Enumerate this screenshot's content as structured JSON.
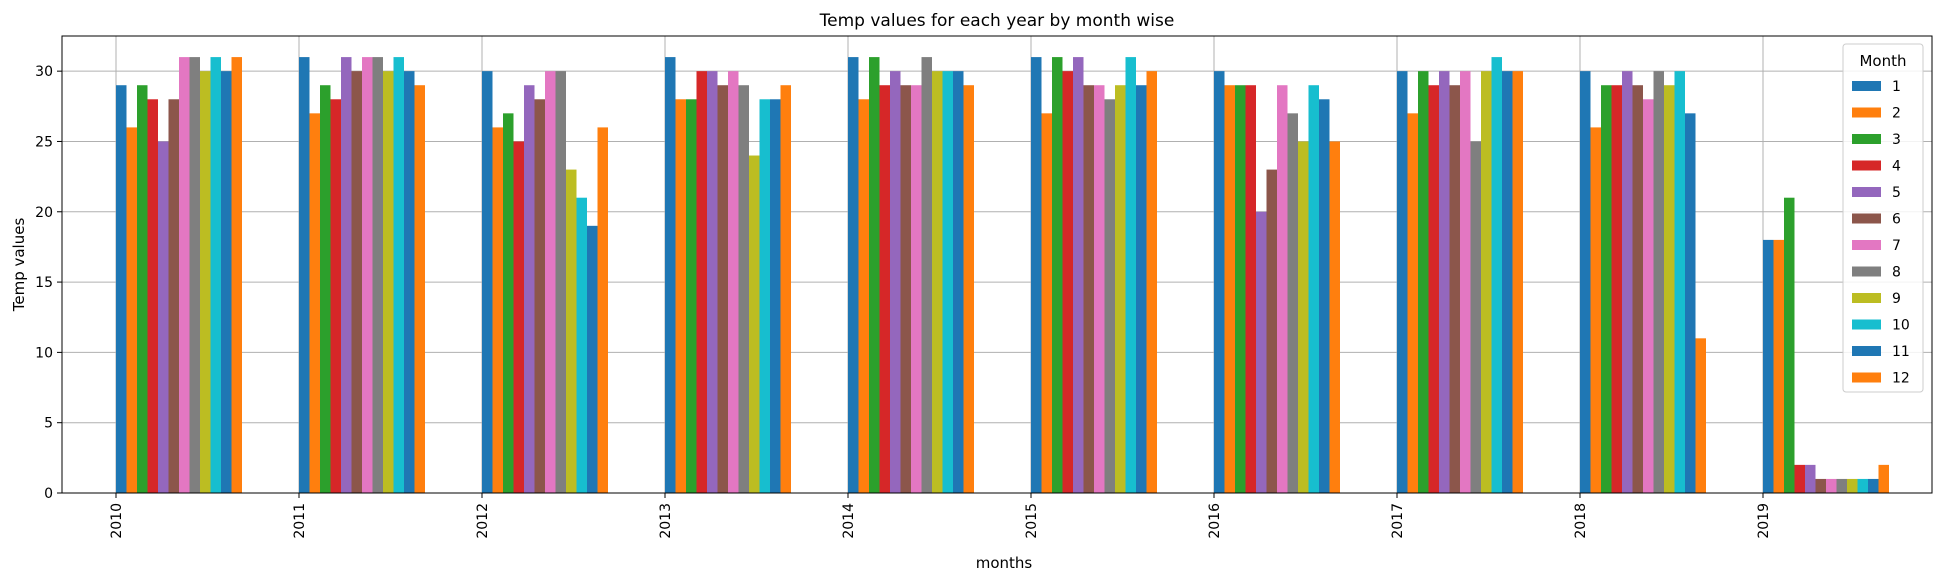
{
  "chart_data": {
    "type": "bar",
    "title": "Temp values for each year by month wise",
    "xlabel": "months",
    "ylabel": "Temp values",
    "ylim": [
      0,
      32.5
    ],
    "yticks": [
      0,
      5,
      10,
      15,
      20,
      25,
      30
    ],
    "grid": true,
    "legend": {
      "title": "Month",
      "position": "top-right"
    },
    "categories": [
      "2010",
      "2011",
      "2012",
      "2013",
      "2014",
      "2015",
      "2016",
      "2017",
      "2018",
      "2019"
    ],
    "series": [
      {
        "name": "1",
        "color": "#1f77b4",
        "values": [
          29,
          31,
          30,
          31,
          31,
          31,
          30,
          30,
          30,
          18
        ]
      },
      {
        "name": "2",
        "color": "#ff7f0e",
        "values": [
          26,
          27,
          26,
          28,
          28,
          27,
          29,
          27,
          26,
          18
        ]
      },
      {
        "name": "3",
        "color": "#2ca02c",
        "values": [
          29,
          29,
          27,
          28,
          31,
          31,
          29,
          30,
          29,
          21
        ]
      },
      {
        "name": "4",
        "color": "#d62728",
        "values": [
          28,
          28,
          25,
          30,
          29,
          30,
          29,
          29,
          29,
          2
        ]
      },
      {
        "name": "5",
        "color": "#9467bd",
        "values": [
          25,
          31,
          29,
          30,
          30,
          31,
          20,
          30,
          30,
          2
        ]
      },
      {
        "name": "6",
        "color": "#8c564b",
        "values": [
          28,
          30,
          28,
          29,
          29,
          29,
          23,
          29,
          29,
          1
        ]
      },
      {
        "name": "7",
        "color": "#e377c2",
        "values": [
          31,
          31,
          30,
          30,
          29,
          29,
          29,
          30,
          28,
          1
        ]
      },
      {
        "name": "8",
        "color": "#7f7f7f",
        "values": [
          31,
          31,
          30,
          29,
          31,
          28,
          27,
          25,
          30,
          1
        ]
      },
      {
        "name": "9",
        "color": "#bcbd22",
        "values": [
          30,
          30,
          23,
          24,
          30,
          29,
          25,
          30,
          29,
          1
        ]
      },
      {
        "name": "10",
        "color": "#17becf",
        "values": [
          31,
          31,
          21,
          28,
          30,
          31,
          29,
          31,
          30,
          1
        ]
      },
      {
        "name": "11",
        "color": "#1f77b4",
        "values": [
          30,
          30,
          19,
          28,
          30,
          29,
          28,
          30,
          27,
          1
        ]
      },
      {
        "name": "12",
        "color": "#ff7f0e",
        "values": [
          31,
          29,
          26,
          29,
          29,
          30,
          25,
          30,
          11,
          2
        ]
      }
    ]
  }
}
